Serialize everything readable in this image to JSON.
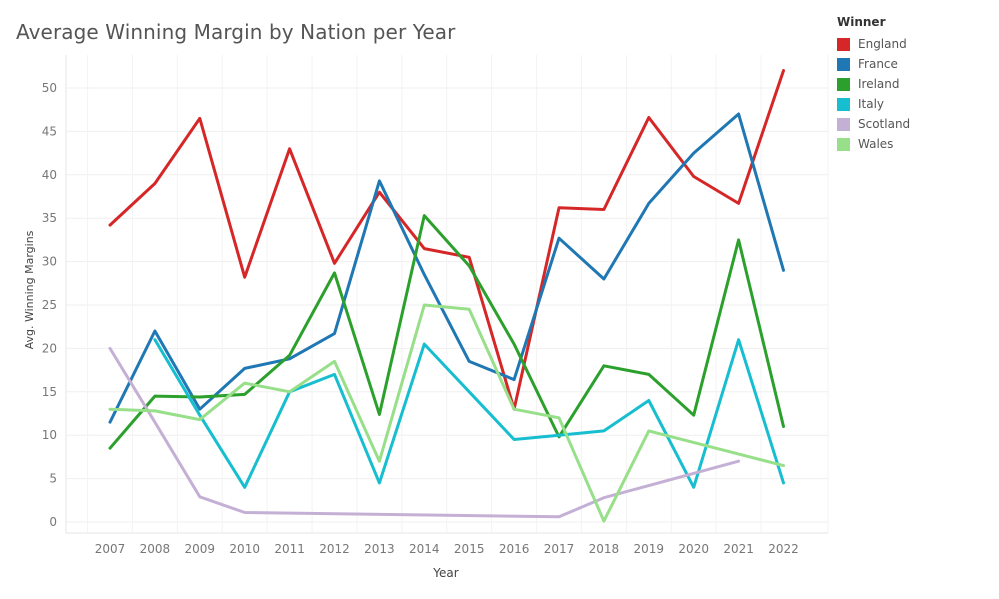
{
  "chart_data": {
    "type": "line",
    "title": "Average Winning Margin by Nation per Year",
    "xlabel": "Year",
    "ylabel": "Avg. Winning Margins",
    "x": [
      "2007",
      "2008",
      "2009",
      "2010",
      "2011",
      "2012",
      "2013",
      "2014",
      "2015",
      "2016",
      "2017",
      "2018",
      "2019",
      "2020",
      "2021",
      "2022"
    ],
    "yticks": [
      0,
      5,
      10,
      15,
      20,
      25,
      30,
      35,
      40,
      45,
      50
    ],
    "ylim": [
      0,
      53
    ],
    "grid": true,
    "legend": {
      "title": "Winner",
      "position": "top-right"
    },
    "series": [
      {
        "name": "England",
        "color": "#d62728",
        "values": [
          34.2,
          39,
          46.5,
          28.2,
          43,
          29.8,
          38,
          31.5,
          30.5,
          13,
          36.2,
          36,
          46.6,
          39.8,
          36.7,
          52
        ]
      },
      {
        "name": "France",
        "color": "#1f77b4",
        "values": [
          11.5,
          22,
          13,
          17.7,
          18.8,
          21.7,
          39.3,
          28.5,
          18.5,
          16.4,
          32.7,
          28,
          36.7,
          42.5,
          47,
          29
        ]
      },
      {
        "name": "Ireland",
        "color": "#2ca02c",
        "values": [
          8.5,
          14.5,
          14.4,
          14.7,
          19.2,
          28.7,
          12.4,
          35.3,
          29.5,
          20.5,
          9.8,
          18,
          17,
          12.3,
          32.5,
          11
        ]
      },
      {
        "name": "Italy",
        "color": "#17becf",
        "values": [
          null,
          21,
          12.3,
          4,
          15,
          17,
          4.5,
          20.5,
          15,
          9.5,
          10,
          10.5,
          14,
          4,
          21,
          4.5
        ]
      },
      {
        "name": "Scotland",
        "color": "#c5b0d5",
        "values": [
          20,
          11.5,
          2.9,
          1.1,
          null,
          null,
          null,
          null,
          null,
          null,
          0.6,
          2.8,
          null,
          null,
          7,
          null
        ]
      },
      {
        "name": "Wales",
        "color": "#98df8a",
        "values": [
          13,
          12.8,
          11.8,
          16,
          15,
          18.5,
          7,
          25,
          24.5,
          13,
          12,
          0.1,
          10.5,
          null,
          null,
          6.5
        ]
      }
    ]
  }
}
